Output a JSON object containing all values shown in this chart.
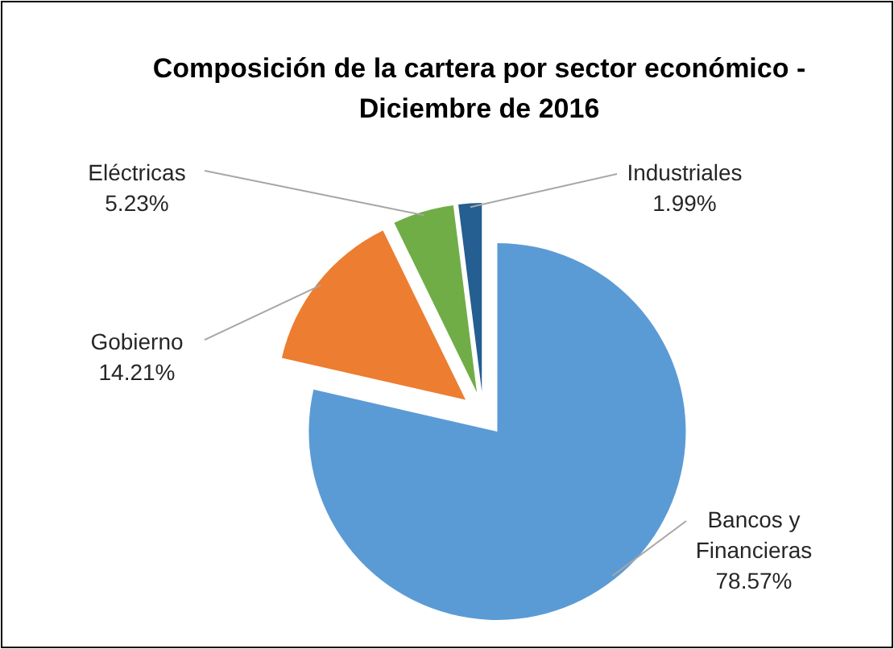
{
  "chart_data": {
    "type": "pie",
    "title": "Composición de la cartera por sector económico - Diciembre de 2016",
    "categories": [
      "Bancos y Financieras",
      "Gobierno",
      "Eléctricas",
      "Industriales"
    ],
    "values": [
      78.57,
      14.21,
      5.23,
      1.99
    ],
    "colors": [
      "#5b9bd5",
      "#ed7d31",
      "#70ad47",
      "#255e91"
    ],
    "value_labels": [
      "78.57%",
      "14.21%",
      "5.23%",
      "1.99%"
    ]
  }
}
